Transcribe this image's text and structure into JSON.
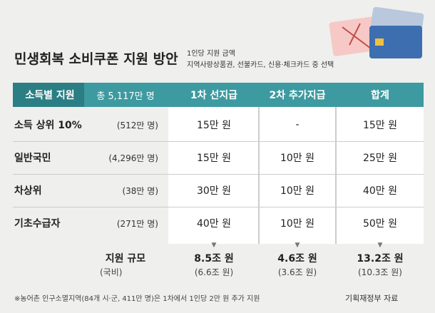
{
  "header": {
    "title": "민생회복 소비쿠폰 지원 방안",
    "notes": [
      "1인당 지원 금액",
      "지역사랑상품권, 선불카드, 신용·체크카드 중 선택"
    ]
  },
  "table": {
    "columns": [
      "소득별 지원",
      "총 5,117만 명",
      "1차 선지급",
      "2차 추가지급",
      "합계"
    ],
    "rows": [
      [
        "소득 상위 10%",
        "(512만 명)",
        "15만 원",
        "-",
        "15만 원"
      ],
      [
        "일반국민",
        "(4,296만 명)",
        "15만 원",
        "10만 원",
        "25만 원"
      ],
      [
        "차상위",
        "(38만 명)",
        "30만 원",
        "10만 원",
        "40만 원"
      ],
      [
        "기초수급자",
        "(271만 명)",
        "40만 원",
        "10만 원",
        "50만 원"
      ]
    ],
    "summary": {
      "label": "지원 규모",
      "sublabel": "(국비)",
      "values": [
        [
          "8.5조 원",
          "(6.6조 원)"
        ],
        [
          "4.6조 원",
          "(3.6조 원)"
        ],
        [
          "13.2조 원",
          "(10.3조 원)"
        ]
      ]
    }
  },
  "footer": {
    "note": "※농어촌 인구소멸지역(84개 시·군, 411만 명)은 1차에서 1인당 2만 원 추가 지원",
    "source": "기획재정부 자료"
  }
}
